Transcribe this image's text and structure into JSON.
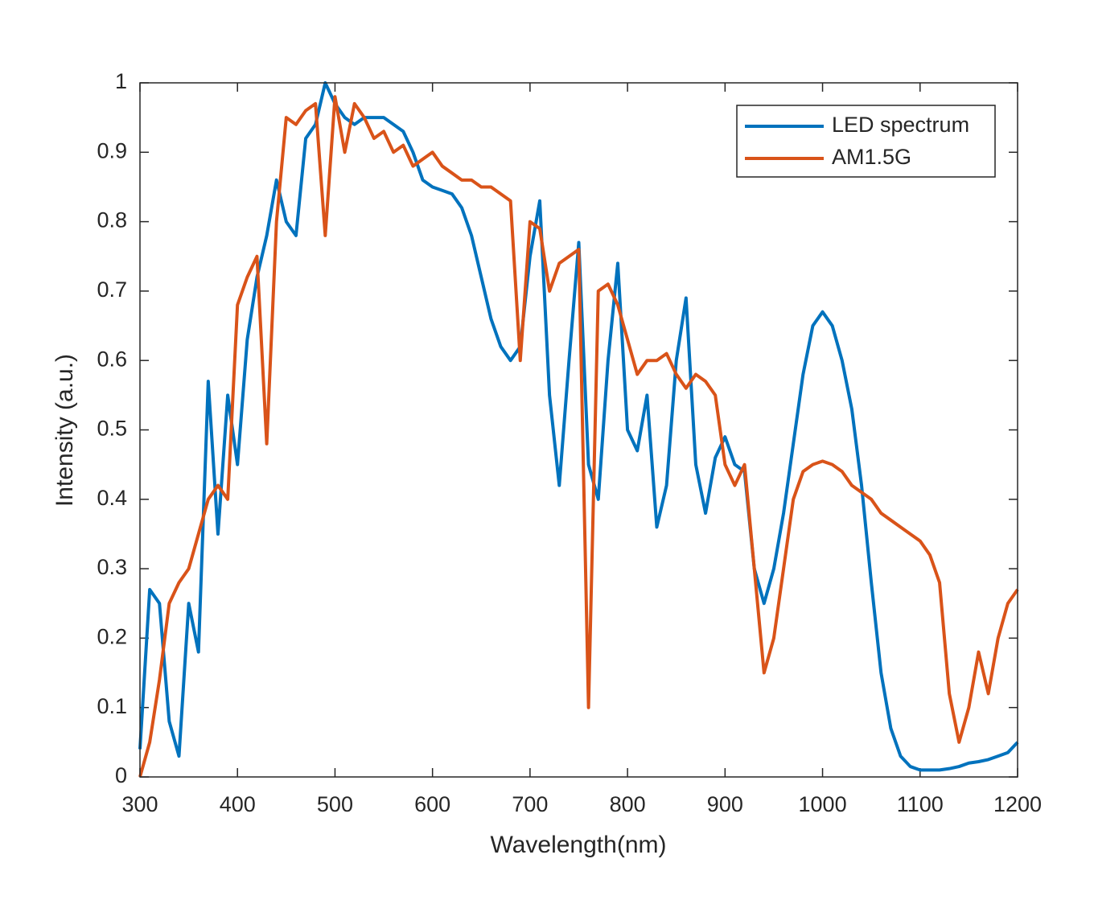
{
  "chart_data": {
    "type": "line",
    "xlabel": "Wavelength(nm)",
    "ylabel": "Intensity (a.u.)",
    "x": [
      300,
      310,
      320,
      330,
      340,
      350,
      360,
      370,
      380,
      390,
      400,
      410,
      420,
      430,
      440,
      450,
      460,
      470,
      480,
      490,
      500,
      510,
      520,
      530,
      540,
      550,
      560,
      570,
      580,
      590,
      600,
      610,
      620,
      630,
      640,
      650,
      660,
      670,
      680,
      690,
      700,
      710,
      720,
      730,
      740,
      750,
      760,
      770,
      780,
      790,
      800,
      810,
      820,
      830,
      840,
      850,
      860,
      870,
      880,
      890,
      900,
      910,
      920,
      930,
      940,
      950,
      960,
      970,
      980,
      990,
      1000,
      1010,
      1020,
      1030,
      1040,
      1050,
      1060,
      1070,
      1080,
      1090,
      1100,
      1110,
      1120,
      1130,
      1140,
      1150,
      1160,
      1170,
      1180,
      1190,
      1200
    ],
    "series": [
      {
        "name": "LED spectrum",
        "color": "#0072bd",
        "values": [
          0.04,
          0.27,
          0.25,
          0.08,
          0.03,
          0.25,
          0.18,
          0.57,
          0.35,
          0.55,
          0.45,
          0.63,
          0.72,
          0.78,
          0.86,
          0.8,
          0.78,
          0.92,
          0.94,
          1.0,
          0.97,
          0.95,
          0.94,
          0.95,
          0.95,
          0.95,
          0.94,
          0.93,
          0.9,
          0.86,
          0.85,
          0.845,
          0.84,
          0.82,
          0.78,
          0.72,
          0.66,
          0.62,
          0.6,
          0.62,
          0.75,
          0.83,
          0.55,
          0.42,
          0.6,
          0.77,
          0.45,
          0.4,
          0.6,
          0.74,
          0.5,
          0.47,
          0.55,
          0.36,
          0.42,
          0.6,
          0.69,
          0.45,
          0.38,
          0.46,
          0.49,
          0.45,
          0.44,
          0.3,
          0.25,
          0.3,
          0.38,
          0.48,
          0.58,
          0.65,
          0.67,
          0.65,
          0.6,
          0.53,
          0.42,
          0.28,
          0.15,
          0.07,
          0.03,
          0.015,
          0.01,
          0.01,
          0.01,
          0.012,
          0.015,
          0.02,
          0.022,
          0.025,
          0.03,
          0.035,
          0.05
        ]
      },
      {
        "name": "AM1.5G",
        "color": "#d95319",
        "values": [
          0,
          0.05,
          0.14,
          0.25,
          0.28,
          0.3,
          0.35,
          0.4,
          0.42,
          0.4,
          0.68,
          0.72,
          0.75,
          0.48,
          0.8,
          0.95,
          0.94,
          0.96,
          0.97,
          0.78,
          0.98,
          0.9,
          0.97,
          0.95,
          0.92,
          0.93,
          0.9,
          0.91,
          0.88,
          0.89,
          0.9,
          0.88,
          0.87,
          0.86,
          0.86,
          0.85,
          0.85,
          0.84,
          0.83,
          0.6,
          0.8,
          0.79,
          0.7,
          0.74,
          0.75,
          0.76,
          0.1,
          0.7,
          0.71,
          0.68,
          0.63,
          0.58,
          0.6,
          0.6,
          0.61,
          0.58,
          0.56,
          0.58,
          0.57,
          0.55,
          0.45,
          0.42,
          0.45,
          0.3,
          0.15,
          0.2,
          0.3,
          0.4,
          0.44,
          0.45,
          0.455,
          0.45,
          0.44,
          0.42,
          0.41,
          0.4,
          0.38,
          0.37,
          0.36,
          0.35,
          0.34,
          0.32,
          0.28,
          0.12,
          0.05,
          0.1,
          0.18,
          0.12,
          0.2,
          0.25,
          0.27
        ]
      }
    ],
    "xlim": [
      300,
      1200
    ],
    "xticks": [
      300,
      400,
      500,
      600,
      700,
      800,
      900,
      1000,
      1100,
      1200
    ],
    "ylim": [
      0,
      1
    ],
    "yticks": [
      0,
      0.1,
      0.2,
      0.3,
      0.4,
      0.5,
      0.6,
      0.7,
      0.8,
      0.9,
      1
    ],
    "legend": "upper right"
  }
}
